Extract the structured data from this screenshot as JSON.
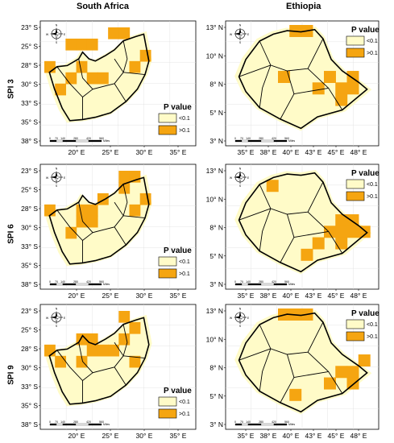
{
  "columns": [
    "South Africa",
    "Ethiopia"
  ],
  "rows": [
    "SPI 3",
    "SPI 6",
    "SPI 9"
  ],
  "legend": {
    "title": "P value",
    "items": [
      {
        "label": "<0.1",
        "color": "#fffbc8"
      },
      {
        "label": ">0.1",
        "color": "#f5a511"
      }
    ]
  },
  "south_africa_axes": {
    "y_ticks": [
      "23° S",
      "25° S",
      "28° S",
      "30° S",
      "33° S",
      "35° S",
      "38° S"
    ],
    "x_ticks": [
      "20° E",
      "25° E",
      "30° E",
      "35° E"
    ]
  },
  "ethiopia_axes": {
    "y_ticks": [
      "13° N",
      "10° N",
      "8° N",
      "5° N",
      "3° N"
    ],
    "x_ticks": [
      "35° E",
      "38° E",
      "40° E",
      "43° E",
      "45° E",
      "48° E"
    ]
  },
  "scale_bar": {
    "labels": [
      "0",
      "70",
      "140",
      "280",
      "420",
      "560"
    ],
    "unit": "Miles"
  },
  "compass": {
    "n": "N",
    "s": "S",
    "e": "E",
    "w": "W"
  }
}
